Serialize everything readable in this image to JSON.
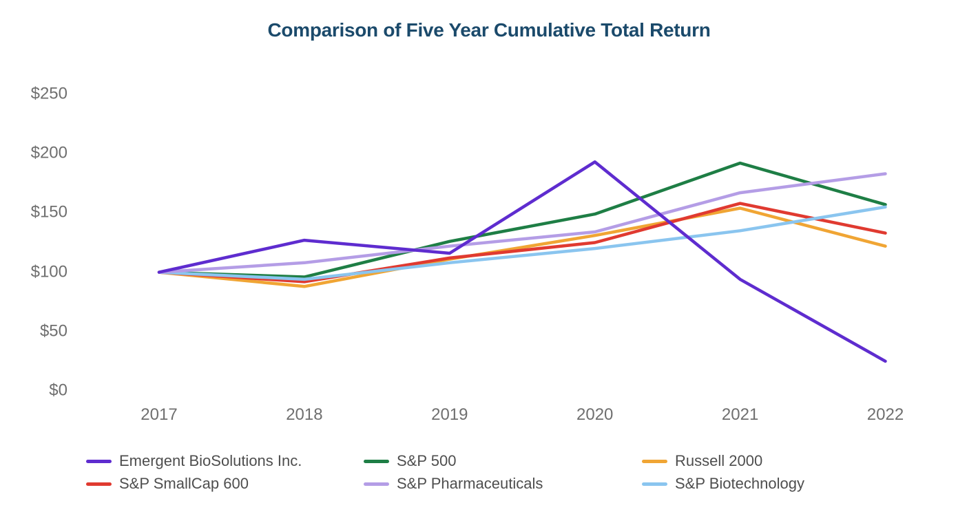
{
  "chart_data": {
    "type": "line",
    "title": "Comparison of Five Year Cumulative Total Return",
    "xlabel": "",
    "ylabel": "",
    "categories": [
      "2017",
      "2018",
      "2019",
      "2020",
      "2021",
      "2022"
    ],
    "ylim": [
      0,
      250
    ],
    "yticks": [
      {
        "value": 250,
        "label": "$250"
      },
      {
        "value": 200,
        "label": "$200"
      },
      {
        "value": 150,
        "label": "$150"
      },
      {
        "value": 100,
        "label": "$100"
      },
      {
        "value": 50,
        "label": "$50"
      },
      {
        "value": 0,
        "label": "$0"
      }
    ],
    "grid": false,
    "legend_position": "bottom",
    "series": [
      {
        "name": "Emergent BioSolutions Inc.",
        "color": "#5e2ccf",
        "values": [
          100,
          127,
          116,
          193,
          94,
          25
        ]
      },
      {
        "name": "S&P SmallCap 600",
        "color": "#e03a30",
        "values": [
          100,
          92,
          112,
          125,
          158,
          133
        ]
      },
      {
        "name": "S&P 500",
        "color": "#1e7e45",
        "values": [
          100,
          96,
          126,
          149,
          192,
          157
        ]
      },
      {
        "name": "S&P Pharmaceuticals",
        "color": "#b49de6",
        "values": [
          100,
          108,
          122,
          134,
          167,
          183
        ]
      },
      {
        "name": "Russell 2000",
        "color": "#f0a534",
        "values": [
          100,
          88,
          111,
          131,
          154,
          122
        ]
      },
      {
        "name": "S&P Biotechnology",
        "color": "#8ac5ef",
        "values": [
          100,
          94,
          108,
          120,
          135,
          155
        ]
      }
    ],
    "title_color": "#1b4a6b",
    "tick_color": "#6f6f6f",
    "legend_text_color": "#4e4e4e"
  }
}
